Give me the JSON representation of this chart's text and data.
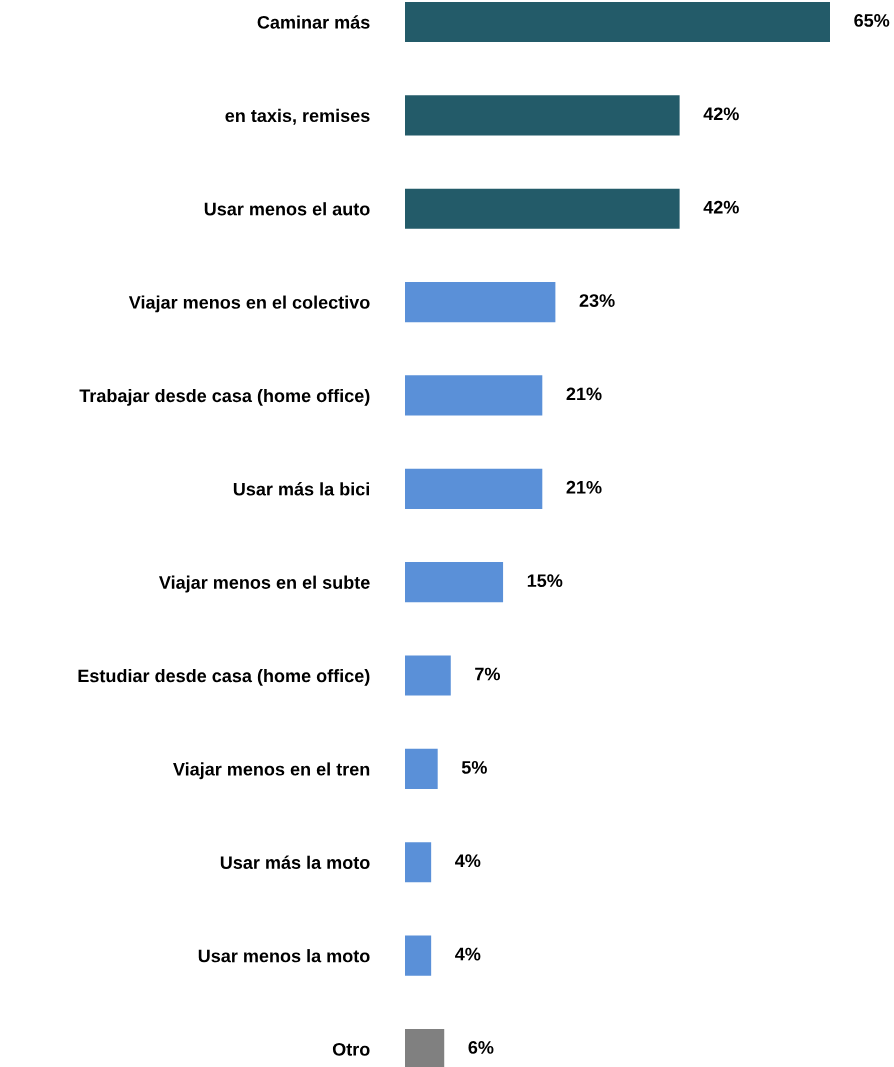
{
  "chart_data": {
    "type": "bar",
    "orientation": "horizontal",
    "categories": [
      "Caminar más",
      "en taxis, remises",
      "Usar menos el auto",
      "Viajar menos en el colectivo",
      "Trabajar desde casa (home office)",
      "Usar más la bici",
      "Viajar menos en el subte",
      "Estudiar desde casa (home office)",
      "Viajar menos en el tren",
      "Usar más la moto",
      "Usar menos la moto",
      "Otro"
    ],
    "values": [
      65,
      42,
      42,
      23,
      21,
      21,
      15,
      7,
      5,
      4,
      4,
      6
    ],
    "value_labels": [
      "65%",
      "42%",
      "42%",
      "23%",
      "21%",
      "21%",
      "15%",
      "7%",
      "5%",
      "4%",
      "4%",
      "6%"
    ],
    "colors": [
      "#235b69",
      "#235b69",
      "#235b69",
      "#5a90d8",
      "#5a90d8",
      "#5a90d8",
      "#5a90d8",
      "#5a90d8",
      "#5a90d8",
      "#5a90d8",
      "#5a90d8",
      "#808080"
    ],
    "grid": false,
    "legend": false
  }
}
